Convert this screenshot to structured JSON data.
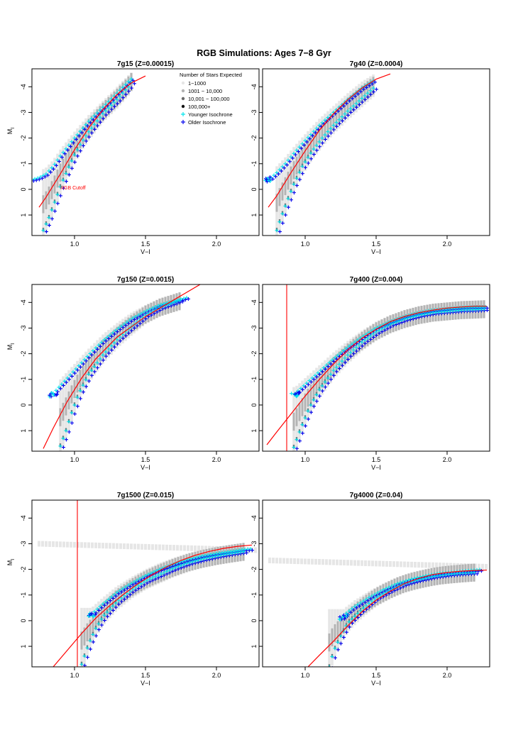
{
  "figure_title": "RGB Simulations: Ages 7−8 Gyr",
  "legend_title": "Number of Stars Expected",
  "colors": {
    "bin1": "#e6e6e6",
    "bin2": "#b3b3b3",
    "bin3": "#6b6b6b",
    "bin4": "#111111",
    "younger": "#00e5ee",
    "older": "#0000ee",
    "cutoff": "#ff0000"
  },
  "chart_data": [
    {
      "type": "scatter",
      "title": "7g15 (Z=0.00015)",
      "xlabel": "V−I",
      "ylabel": "M_I",
      "xlim": [
        0.7,
        2.3
      ],
      "ylim": [
        1.8,
        -4.7
      ],
      "xticks": [
        "1.0",
        "1.5",
        "2.0"
      ],
      "yticks": [
        "-4",
        "-3",
        "-2",
        "-1",
        "0",
        "1"
      ],
      "legend": {
        "position": "top-right",
        "title": "Number of Stars Expected",
        "entries": [
          {
            "label": "1−1000",
            "symbol": "bin1"
          },
          {
            "label": "1001 − 10,000",
            "symbol": "bin2"
          },
          {
            "label": "10,001 − 100,000",
            "symbol": "bin3"
          },
          {
            "label": "100,000+",
            "symbol": "bin4"
          },
          {
            "label": "Younger Isochrone",
            "symbol": "younger"
          },
          {
            "label": "Older Isochrone",
            "symbol": "older"
          }
        ]
      },
      "annotation": {
        "text": "RGB Cutoff",
        "x": 0.9,
        "y": 0.0
      },
      "vline": null,
      "upper_branch": [
        [
          0.7,
          -0.38
        ],
        [
          0.75,
          -0.45
        ],
        [
          0.8,
          -0.6
        ],
        [
          0.85,
          -0.9
        ],
        [
          0.9,
          -1.3
        ],
        [
          0.95,
          -1.65
        ],
        [
          1.0,
          -2.0
        ],
        [
          1.1,
          -2.65
        ],
        [
          1.2,
          -3.2
        ],
        [
          1.3,
          -3.75
        ],
        [
          1.38,
          -4.2
        ],
        [
          1.42,
          -4.4
        ]
      ],
      "lower_branch": [
        [
          0.78,
          1.6
        ],
        [
          0.82,
          1.1
        ],
        [
          0.86,
          0.5
        ],
        [
          0.9,
          -0.1
        ],
        [
          0.95,
          -0.75
        ],
        [
          1.0,
          -1.35
        ],
        [
          1.05,
          -1.85
        ],
        [
          1.1,
          -2.25
        ],
        [
          1.2,
          -2.95
        ],
        [
          1.3,
          -3.5
        ],
        [
          1.38,
          -4.0
        ],
        [
          1.42,
          -4.35
        ]
      ],
      "cutoff_curve": [
        [
          0.75,
          0.7
        ],
        [
          0.8,
          0.3
        ],
        [
          0.9,
          -0.6
        ],
        [
          1.0,
          -1.55
        ],
        [
          1.1,
          -2.4
        ],
        [
          1.2,
          -3.1
        ],
        [
          1.3,
          -3.7
        ],
        [
          1.4,
          -4.15
        ],
        [
          1.5,
          -4.42
        ]
      ],
      "clump": null,
      "band": null
    },
    {
      "type": "scatter",
      "title": "7g40 (Z=0.0004)",
      "xlabel": "V−I",
      "ylabel": "M_I",
      "xlim": [
        0.7,
        2.3
      ],
      "ylim": [
        1.8,
        -4.7
      ],
      "xticks": [
        "1.0",
        "1.5",
        "2.0"
      ],
      "yticks": [
        "-4",
        "-3",
        "-2",
        "-1",
        "0",
        "1"
      ],
      "legend": null,
      "annotation": null,
      "vline": null,
      "upper_branch": [
        [
          0.72,
          -0.35
        ],
        [
          0.76,
          -0.45
        ],
        [
          0.8,
          -0.65
        ],
        [
          0.86,
          -1.0
        ],
        [
          0.92,
          -1.4
        ],
        [
          1.0,
          -1.9
        ],
        [
          1.1,
          -2.5
        ],
        [
          1.2,
          -3.0
        ],
        [
          1.3,
          -3.5
        ],
        [
          1.4,
          -3.95
        ],
        [
          1.5,
          -4.3
        ]
      ],
      "lower_branch": [
        [
          0.8,
          1.6
        ],
        [
          0.83,
          1.1
        ],
        [
          0.87,
          0.5
        ],
        [
          0.92,
          -0.2
        ],
        [
          0.98,
          -0.9
        ],
        [
          1.05,
          -1.5
        ],
        [
          1.12,
          -2.0
        ],
        [
          1.2,
          -2.5
        ],
        [
          1.3,
          -3.05
        ],
        [
          1.4,
          -3.55
        ],
        [
          1.5,
          -4.05
        ]
      ],
      "cutoff_curve": [
        [
          0.74,
          0.7
        ],
        [
          0.8,
          0.25
        ],
        [
          0.9,
          -0.65
        ],
        [
          1.0,
          -1.5
        ],
        [
          1.1,
          -2.3
        ],
        [
          1.2,
          -2.95
        ],
        [
          1.3,
          -3.5
        ],
        [
          1.4,
          -3.95
        ],
        [
          1.5,
          -4.3
        ],
        [
          1.6,
          -4.5
        ]
      ],
      "clump": [
        0.75,
        -0.4
      ],
      "band": null
    },
    {
      "type": "scatter",
      "title": "7g150 (Z=0.0015)",
      "xlabel": "V−I",
      "ylabel": "M_I",
      "xlim": [
        0.7,
        2.3
      ],
      "ylim": [
        1.8,
        -4.7
      ],
      "xticks": [
        "1.0",
        "1.5",
        "2.0"
      ],
      "yticks": [
        "-4",
        "-3",
        "-2",
        "-1",
        "0",
        "1"
      ],
      "legend": null,
      "annotation": null,
      "vline": null,
      "upper_branch": [
        [
          0.85,
          -0.45
        ],
        [
          0.9,
          -0.75
        ],
        [
          1.0,
          -1.35
        ],
        [
          1.1,
          -1.95
        ],
        [
          1.2,
          -2.5
        ],
        [
          1.3,
          -2.95
        ],
        [
          1.4,
          -3.35
        ],
        [
          1.5,
          -3.65
        ],
        [
          1.6,
          -3.9
        ],
        [
          1.7,
          -4.05
        ],
        [
          1.8,
          -4.2
        ]
      ],
      "lower_branch": [
        [
          0.9,
          1.6
        ],
        [
          0.94,
          1.0
        ],
        [
          0.98,
          0.3
        ],
        [
          1.03,
          -0.45
        ],
        [
          1.1,
          -1.2
        ],
        [
          1.2,
          -1.95
        ],
        [
          1.3,
          -2.55
        ],
        [
          1.4,
          -3.05
        ],
        [
          1.5,
          -3.5
        ],
        [
          1.6,
          -3.8
        ],
        [
          1.75,
          -4.1
        ]
      ],
      "cutoff_curve": [
        [
          0.78,
          1.7
        ],
        [
          0.85,
          0.9
        ],
        [
          0.95,
          -0.15
        ],
        [
          1.05,
          -1.05
        ],
        [
          1.15,
          -1.8
        ],
        [
          1.3,
          -2.65
        ],
        [
          1.5,
          -3.45
        ],
        [
          1.7,
          -4.1
        ],
        [
          1.9,
          -4.75
        ]
      ],
      "clump": [
        0.85,
        -0.42
      ],
      "band": null
    },
    {
      "type": "scatter",
      "title": "7g400 (Z=0.004)",
      "xlabel": "V−I",
      "ylabel": "M_I",
      "xlim": [
        0.7,
        2.3
      ],
      "ylim": [
        1.8,
        -4.7
      ],
      "xticks": [
        "1.0",
        "1.5",
        "2.0"
      ],
      "yticks": [
        "-4",
        "-3",
        "-2",
        "-1",
        "0",
        "1"
      ],
      "legend": null,
      "annotation": null,
      "vline": 0.87,
      "upper_branch": [
        [
          0.93,
          -0.45
        ],
        [
          1.0,
          -0.8
        ],
        [
          1.1,
          -1.3
        ],
        [
          1.2,
          -1.8
        ],
        [
          1.3,
          -2.25
        ],
        [
          1.4,
          -2.65
        ],
        [
          1.5,
          -3.0
        ],
        [
          1.6,
          -3.25
        ],
        [
          1.7,
          -3.45
        ],
        [
          1.8,
          -3.6
        ],
        [
          1.9,
          -3.7
        ],
        [
          2.0,
          -3.75
        ],
        [
          2.1,
          -3.8
        ],
        [
          2.2,
          -3.82
        ],
        [
          2.28,
          -3.83
        ]
      ],
      "lower_branch": [
        [
          0.92,
          1.65
        ],
        [
          0.97,
          0.9
        ],
        [
          1.03,
          0.1
        ],
        [
          1.1,
          -0.6
        ],
        [
          1.2,
          -1.35
        ],
        [
          1.3,
          -1.95
        ],
        [
          1.4,
          -2.45
        ],
        [
          1.5,
          -2.85
        ],
        [
          1.6,
          -3.15
        ],
        [
          1.7,
          -3.35
        ],
        [
          1.8,
          -3.5
        ],
        [
          1.9,
          -3.6
        ],
        [
          2.0,
          -3.65
        ],
        [
          2.1,
          -3.7
        ],
        [
          2.2,
          -3.72
        ],
        [
          2.28,
          -3.75
        ]
      ],
      "cutoff_curve": [
        [
          0.73,
          1.55
        ],
        [
          0.8,
          1.05
        ],
        [
          0.9,
          0.35
        ],
        [
          1.0,
          -0.35
        ],
        [
          1.1,
          -1.0
        ],
        [
          1.2,
          -1.6
        ],
        [
          1.3,
          -2.15
        ],
        [
          1.4,
          -2.6
        ],
        [
          1.5,
          -2.95
        ],
        [
          1.6,
          -3.25
        ],
        [
          1.7,
          -3.45
        ],
        [
          1.8,
          -3.6
        ],
        [
          1.9,
          -3.7
        ],
        [
          2.0,
          -3.78
        ],
        [
          2.1,
          -3.82
        ],
        [
          2.2,
          -3.85
        ],
        [
          2.28,
          -3.85
        ]
      ],
      "clump": [
        0.93,
        -0.42
      ],
      "band": null
    },
    {
      "type": "scatter",
      "title": "7g1500 (Z=0.015)",
      "xlabel": "V−I",
      "ylabel": "M_I",
      "xlim": [
        0.7,
        2.3
      ],
      "ylim": [
        1.8,
        -4.7
      ],
      "xticks": [
        "1.0",
        "1.5",
        "2.0"
      ],
      "yticks": [
        "-4",
        "-3",
        "-2",
        "-1",
        "0",
        "1"
      ],
      "legend": null,
      "annotation": null,
      "vline": 1.02,
      "upper_branch": [
        [
          1.12,
          -0.25
        ],
        [
          1.2,
          -0.65
        ],
        [
          1.3,
          -1.1
        ],
        [
          1.4,
          -1.45
        ],
        [
          1.5,
          -1.75
        ],
        [
          1.6,
          -2.0
        ],
        [
          1.7,
          -2.2
        ],
        [
          1.8,
          -2.38
        ],
        [
          1.9,
          -2.52
        ],
        [
          2.0,
          -2.62
        ],
        [
          2.1,
          -2.7
        ],
        [
          2.2,
          -2.78
        ],
        [
          2.25,
          -2.8
        ]
      ],
      "lower_branch": [
        [
          1.05,
          1.7
        ],
        [
          1.1,
          0.9
        ],
        [
          1.15,
          0.3
        ],
        [
          1.2,
          -0.15
        ],
        [
          1.3,
          -0.75
        ],
        [
          1.4,
          -1.2
        ],
        [
          1.5,
          -1.55
        ],
        [
          1.6,
          -1.8
        ],
        [
          1.7,
          -2.05
        ],
        [
          1.8,
          -2.25
        ],
        [
          1.9,
          -2.4
        ],
        [
          2.0,
          -2.52
        ],
        [
          2.1,
          -2.62
        ],
        [
          2.2,
          -2.7
        ]
      ],
      "cutoff_curve": [
        [
          0.85,
          1.8
        ],
        [
          0.95,
          1.15
        ],
        [
          1.05,
          0.5
        ],
        [
          1.15,
          -0.1
        ],
        [
          1.25,
          -0.6
        ],
        [
          1.35,
          -1.05
        ],
        [
          1.45,
          -1.45
        ],
        [
          1.55,
          -1.8
        ],
        [
          1.65,
          -2.1
        ],
        [
          1.75,
          -2.35
        ],
        [
          1.85,
          -2.55
        ],
        [
          1.95,
          -2.7
        ],
        [
          2.05,
          -2.82
        ],
        [
          2.15,
          -2.9
        ],
        [
          2.25,
          -2.95
        ]
      ],
      "clump": [
        1.12,
        -0.22
      ],
      "band": {
        "x_start": 0.75,
        "x_end": 2.28,
        "y_start": -3.0,
        "y_end": -2.75
      }
    },
    {
      "type": "scatter",
      "title": "7g4000 (Z=0.04)",
      "xlabel": "V−I",
      "ylabel": "M_I",
      "xlim": [
        0.7,
        2.3
      ],
      "ylim": [
        1.8,
        -4.7
      ],
      "xticks": [
        "1.0",
        "1.5",
        "2.0"
      ],
      "yticks": [
        "-4",
        "-3",
        "-2",
        "-1",
        "0",
        "1"
      ],
      "legend": null,
      "annotation": null,
      "vline": null,
      "upper_branch": [
        [
          1.27,
          -0.2
        ],
        [
          1.35,
          -0.55
        ],
        [
          1.45,
          -0.9
        ],
        [
          1.55,
          -1.2
        ],
        [
          1.65,
          -1.45
        ],
        [
          1.75,
          -1.62
        ],
        [
          1.85,
          -1.75
        ],
        [
          1.95,
          -1.85
        ],
        [
          2.05,
          -1.9
        ],
        [
          2.15,
          -1.95
        ],
        [
          2.25,
          -2.0
        ]
      ],
      "lower_branch": [
        [
          1.17,
          1.8
        ],
        [
          1.2,
          1.2
        ],
        [
          1.25,
          0.6
        ],
        [
          1.3,
          0.1
        ],
        [
          1.4,
          -0.45
        ],
        [
          1.5,
          -0.9
        ],
        [
          1.6,
          -1.2
        ],
        [
          1.7,
          -1.45
        ],
        [
          1.8,
          -1.6
        ],
        [
          1.9,
          -1.72
        ],
        [
          2.0,
          -1.8
        ],
        [
          2.1,
          -1.85
        ],
        [
          2.2,
          -1.88
        ]
      ],
      "cutoff_curve": [
        [
          1.02,
          1.8
        ],
        [
          1.1,
          1.35
        ],
        [
          1.2,
          0.8
        ],
        [
          1.3,
          0.2
        ],
        [
          1.4,
          -0.35
        ],
        [
          1.5,
          -0.8
        ],
        [
          1.6,
          -1.15
        ],
        [
          1.7,
          -1.45
        ],
        [
          1.8,
          -1.65
        ],
        [
          1.9,
          -1.8
        ],
        [
          2.0,
          -1.88
        ],
        [
          2.1,
          -1.93
        ],
        [
          2.2,
          -1.96
        ],
        [
          2.28,
          -1.97
        ]
      ],
      "clump": [
        1.27,
        -0.15
      ],
      "band": {
        "x_start": 0.75,
        "x_end": 2.28,
        "y_start": -2.35,
        "y_end": -2.1
      }
    }
  ]
}
